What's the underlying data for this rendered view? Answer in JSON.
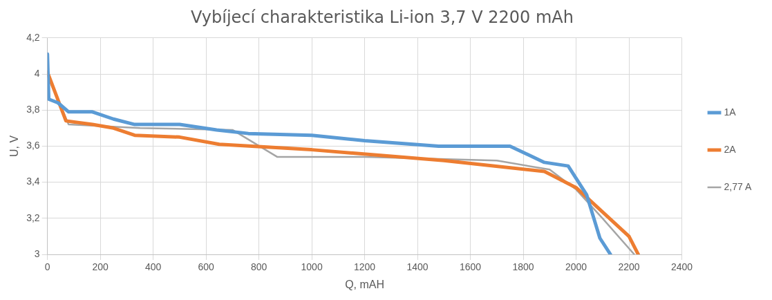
{
  "chart_data": {
    "type": "line",
    "title": "Vybíjecí charakteristika Li-ion 3,7 V 2200 mAh",
    "xlabel": "Q, mAH",
    "ylabel": "U, V",
    "xlim": [
      0,
      2400
    ],
    "xticks": [
      0,
      200,
      400,
      600,
      800,
      1000,
      1200,
      1400,
      1600,
      1800,
      2000,
      2200,
      2400
    ],
    "ylim": [
      3,
      4.2
    ],
    "yticks": [
      3,
      {
        "value": 3.2,
        "label": "3,2"
      },
      {
        "value": 3.4,
        "label": "3,4"
      },
      {
        "value": 3.6,
        "label": "3,6"
      },
      {
        "value": 3.8,
        "label": "3,8"
      },
      4,
      {
        "value": 4.2,
        "label": "4,2"
      }
    ],
    "grid": true,
    "legend": "right",
    "marker": "none",
    "line_style": "solid",
    "series": [
      {
        "name": "1A",
        "color": "#5b9bd5",
        "x": [
          0,
          5,
          40,
          80,
          170,
          250,
          330,
          500,
          640,
          760,
          1000,
          1200,
          1480,
          1750,
          1880,
          1970,
          2040,
          2090,
          2130
        ],
        "values": [
          4.11,
          3.86,
          3.84,
          3.79,
          3.79,
          3.75,
          3.72,
          3.72,
          3.69,
          3.67,
          3.66,
          3.63,
          3.6,
          3.6,
          3.51,
          3.49,
          3.33,
          3.09,
          3.0
        ]
      },
      {
        "name": "2A",
        "color": "#ed7d31",
        "x": [
          0,
          70,
          170,
          250,
          330,
          500,
          650,
          1000,
          1500,
          1880,
          2000,
          2200,
          2235
        ],
        "values": [
          4.01,
          3.74,
          3.72,
          3.7,
          3.66,
          3.65,
          3.61,
          3.58,
          3.52,
          3.46,
          3.37,
          3.1,
          3.0
        ]
      },
      {
        "name": "2,77 A",
        "color": "#a5a5a5",
        "x": [
          0,
          80,
          350,
          700,
          870,
          1200,
          1700,
          1900,
          2000,
          2100,
          2220
        ],
        "values": [
          3.99,
          3.72,
          3.7,
          3.69,
          3.54,
          3.54,
          3.52,
          3.47,
          3.36,
          3.2,
          3.0
        ]
      }
    ]
  }
}
